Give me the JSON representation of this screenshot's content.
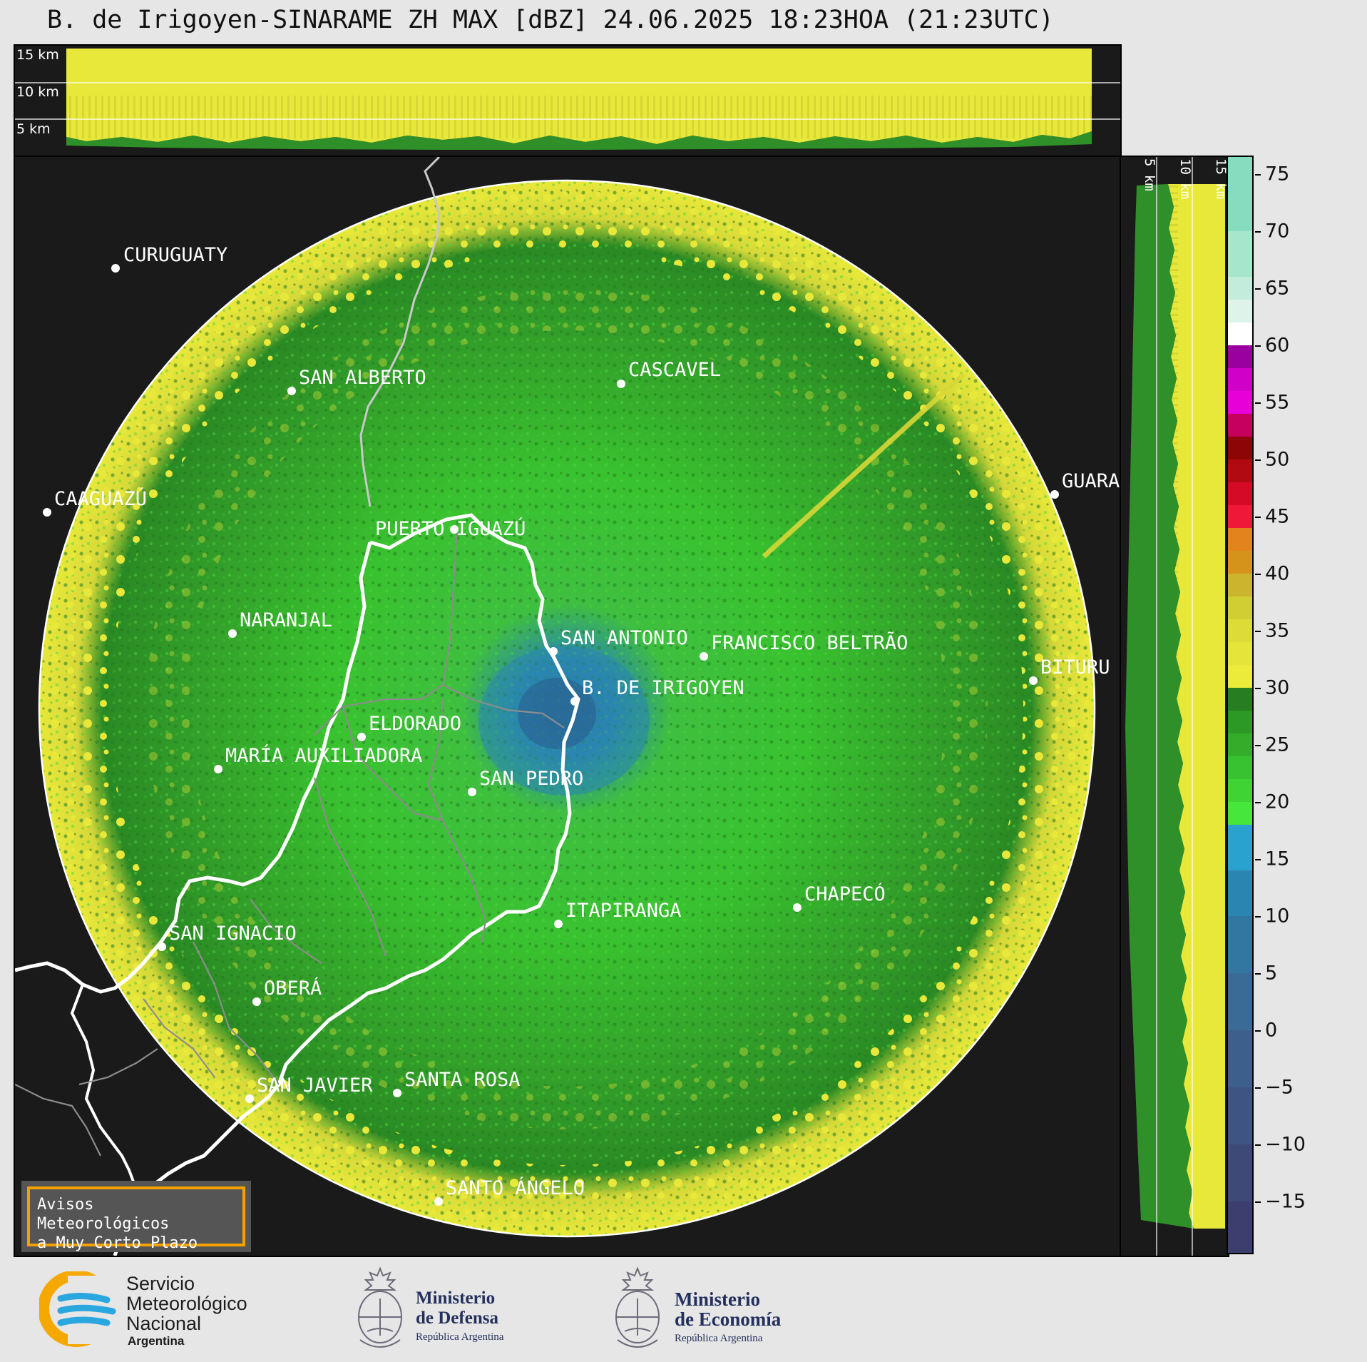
{
  "title": "B. de Irigoyen-SINARAME ZH MAX [dBZ] 24.06.2025 18:23HOA (21:23UTC)",
  "top_xsec": {
    "heights": [
      "15 km",
      "10 km",
      "5 km"
    ]
  },
  "right_xsec": {
    "heights": [
      "5 km",
      "10 km",
      "15 km"
    ]
  },
  "colorbar": {
    "ticks": [
      "75",
      "70",
      "65",
      "60",
      "55",
      "50",
      "45",
      "40",
      "35",
      "30",
      "25",
      "20",
      "15",
      "10",
      "5",
      "0",
      "−5",
      "−10",
      "−15"
    ],
    "tick_values": [
      75,
      70,
      65,
      60,
      55,
      50,
      45,
      40,
      35,
      30,
      25,
      20,
      15,
      10,
      5,
      0,
      -5,
      -10,
      -15
    ],
    "range": [
      -19.5,
      76.5
    ],
    "segments": [
      {
        "from": -19.5,
        "to": -15,
        "color": "#3c3f6e"
      },
      {
        "from": -15,
        "to": -10,
        "color": "#3f4978"
      },
      {
        "from": -10,
        "to": -5,
        "color": "#3e5482"
      },
      {
        "from": -5,
        "to": 0,
        "color": "#3c5f8c"
      },
      {
        "from": 0,
        "to": 5,
        "color": "#3a6b96"
      },
      {
        "from": 5,
        "to": 10,
        "color": "#3277a2"
      },
      {
        "from": 10,
        "to": 14,
        "color": "#2a86b0"
      },
      {
        "from": 14,
        "to": 18,
        "color": "#2aa2d0"
      },
      {
        "from": 18,
        "to": 20,
        "color": "#46e63a"
      },
      {
        "from": 20,
        "to": 22,
        "color": "#3fd434"
      },
      {
        "from": 22,
        "to": 24,
        "color": "#39c22f"
      },
      {
        "from": 24,
        "to": 26,
        "color": "#33ad2a"
      },
      {
        "from": 26,
        "to": 28,
        "color": "#2c9826"
      },
      {
        "from": 28,
        "to": 30,
        "color": "#267d22"
      },
      {
        "from": 30,
        "to": 32,
        "color": "#eceb3b"
      },
      {
        "from": 32,
        "to": 34,
        "color": "#e4e43a"
      },
      {
        "from": 34,
        "to": 36,
        "color": "#dcdc38"
      },
      {
        "from": 36,
        "to": 38,
        "color": "#cfce33"
      },
      {
        "from": 38,
        "to": 40,
        "color": "#cbb42e"
      },
      {
        "from": 40,
        "to": 42,
        "color": "#d6931c"
      },
      {
        "from": 42,
        "to": 44,
        "color": "#e2831c"
      },
      {
        "from": 44,
        "to": 46,
        "color": "#f01838"
      },
      {
        "from": 46,
        "to": 48,
        "color": "#d40a26"
      },
      {
        "from": 48,
        "to": 50,
        "color": "#b20a12"
      },
      {
        "from": 50,
        "to": 52,
        "color": "#8c0606"
      },
      {
        "from": 52,
        "to": 54,
        "color": "#c4005c"
      },
      {
        "from": 54,
        "to": 56,
        "color": "#e800d8"
      },
      {
        "from": 56,
        "to": 58,
        "color": "#d000c8"
      },
      {
        "from": 58,
        "to": 60,
        "color": "#9a00a0"
      },
      {
        "from": 60,
        "to": 62,
        "color": "#ffffff"
      },
      {
        "from": 62,
        "to": 64,
        "color": "#def4ea"
      },
      {
        "from": 64,
        "to": 66,
        "color": "#c4ecdc"
      },
      {
        "from": 66,
        "to": 70,
        "color": "#a6e6cd"
      },
      {
        "from": 70,
        "to": 76.5,
        "color": "#86dcbe"
      }
    ]
  },
  "cities": [
    {
      "name": "CURUGUATY"
    },
    {
      "name": "SAN ALBERTO"
    },
    {
      "name": "CASCAVEL"
    },
    {
      "name": "CAAGUAZÚ"
    },
    {
      "name": "GUARA"
    },
    {
      "name": "PUERTO IGUAZÚ"
    },
    {
      "name": "NARANJAL"
    },
    {
      "name": "SAN ANTONIO"
    },
    {
      "name": "FRANCISCO BELTRÃO"
    },
    {
      "name": "BITURU"
    },
    {
      "name": "B. DE IRIGOYEN"
    },
    {
      "name": "ELDORADO"
    },
    {
      "name": "MARÍA AUXILIADORA"
    },
    {
      "name": "SAN PEDRO"
    },
    {
      "name": "ITAPIRANGA"
    },
    {
      "name": "CHAPECÓ"
    },
    {
      "name": "SAN IGNACIO"
    },
    {
      "name": "OBERÁ"
    },
    {
      "name": "SAN JAVIER"
    },
    {
      "name": "SANTA ROSA"
    },
    {
      "name": "SANTO ÁNGELO"
    }
  ],
  "notice": {
    "line1": "Avisos Meteorológicos",
    "line2": "a Muy Corto Plazo"
  },
  "footer": {
    "smn": {
      "line1": "Servicio",
      "line2": "Meteorológico",
      "line3": "Nacional",
      "line4": "Argentina"
    },
    "defensa": {
      "line1": "Ministerio",
      "line2": "de Defensa",
      "line3": "República Argentina"
    },
    "economia": {
      "line1": "Ministerio",
      "line2": "de Economía",
      "line3": "República Argentina"
    }
  },
  "colors": {
    "panel_bg": "#1a1a1a",
    "echo_green_dark": "#267d22",
    "echo_green": "#33ad2a",
    "echo_green_light": "#46d63a",
    "echo_yellow": "#eceb3b",
    "echo_blue": "#2a86b0",
    "smn_orange": "#f5a800",
    "smn_blue": "#2aa7df"
  }
}
